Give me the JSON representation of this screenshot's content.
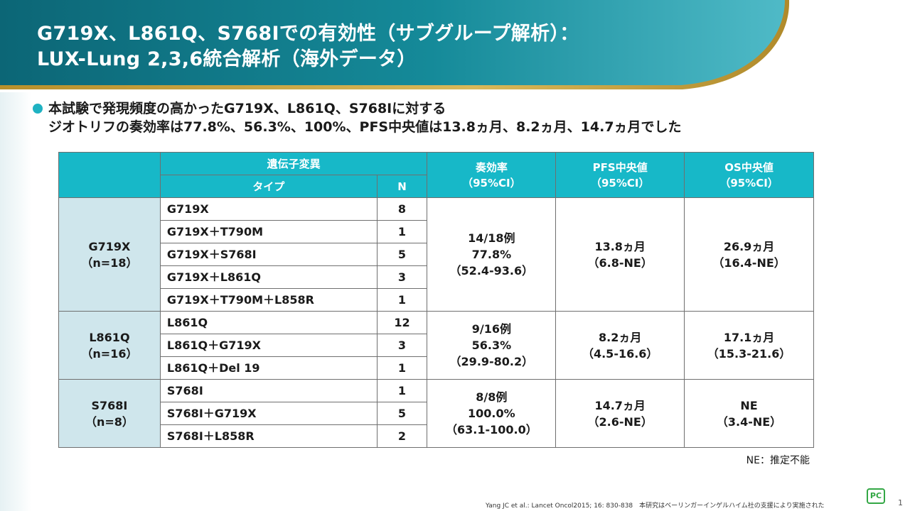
{
  "title": {
    "line1": "G719X、L861Q、S768Iでの有効性（サブグループ解析）：",
    "line2": "LUX-Lung 2,3,6統合解析（海外データ）"
  },
  "bullet": {
    "line1": "本試験で発現頻度の高かったG719X、L861Q、S768Iに対する",
    "line2": "ジオトリフの奏効率は77.8%、56.3%、100%、PFS中央値は13.8ヵ月、8.2ヵ月、14.7ヵ月でした"
  },
  "table": {
    "header": {
      "gene_mutation": "遺伝子変異",
      "type": "タイプ",
      "n": "N",
      "response_rate": "奏効率",
      "response_rate_ci": "（95%CI）",
      "pfs": "PFS中央値",
      "pfs_ci": "（95%CI）",
      "os": "OS中央値",
      "os_ci": "（95%CI）"
    },
    "groups": [
      {
        "name": "G719X",
        "n_label": "（n=18）",
        "rows": [
          {
            "type": "G719X",
            "n": "8"
          },
          {
            "type": "G719X＋T790M",
            "n": "1"
          },
          {
            "type": "G719X＋S768I",
            "n": "5"
          },
          {
            "type": "G719X＋L861Q",
            "n": "3"
          },
          {
            "type": "G719X＋T790M＋L858R",
            "n": "1"
          }
        ],
        "response": {
          "count": "14/18例",
          "rate": "77.8%",
          "ci": "（52.4-93.6）"
        },
        "pfs": {
          "value": "13.8ヵ月",
          "ci": "（6.8-NE）"
        },
        "os": {
          "value": "26.9ヵ月",
          "ci": "（16.4-NE）"
        }
      },
      {
        "name": "L861Q",
        "n_label": "（n=16）",
        "rows": [
          {
            "type": "L861Q",
            "n": "12"
          },
          {
            "type": "L861Q＋G719X",
            "n": "3"
          },
          {
            "type": "L861Q＋Del 19",
            "n": "1"
          }
        ],
        "response": {
          "count": "9/16例",
          "rate": "56.3%",
          "ci": "（29.9-80.2）"
        },
        "pfs": {
          "value": "8.2ヵ月",
          "ci": "（4.5-16.6）"
        },
        "os": {
          "value": "17.1ヵ月",
          "ci": "（15.3-21.6）"
        }
      },
      {
        "name": "S768I",
        "n_label": "（n=8）",
        "rows": [
          {
            "type": "S768I",
            "n": "1"
          },
          {
            "type": "S768I＋G719X",
            "n": "5"
          },
          {
            "type": "S768I＋L858R",
            "n": "2"
          }
        ],
        "response": {
          "count": "8/8例",
          "rate": "100.0%",
          "ci": "（63.1-100.0）"
        },
        "pfs": {
          "value": "14.7ヵ月",
          "ci": "（2.6-NE）"
        },
        "os": {
          "value": "NE",
          "ci": "（3.4-NE）"
        }
      }
    ]
  },
  "note": "NE：推定不能",
  "citation": "Yang JC et al.: Lancet Oncol2015; 16: 830-838　本研究はベーリンガーインゲルハイム社の支援により実施された",
  "logo_text": "PC",
  "page_number": "1",
  "colors": {
    "banner_dark": "#0f6f80",
    "banner_light": "#5dc3cf",
    "banner_gold": "#c9a43c",
    "table_header": "#17b8c8",
    "group_cell": "#cfe6ec",
    "bullet": "#1fb2c2"
  }
}
